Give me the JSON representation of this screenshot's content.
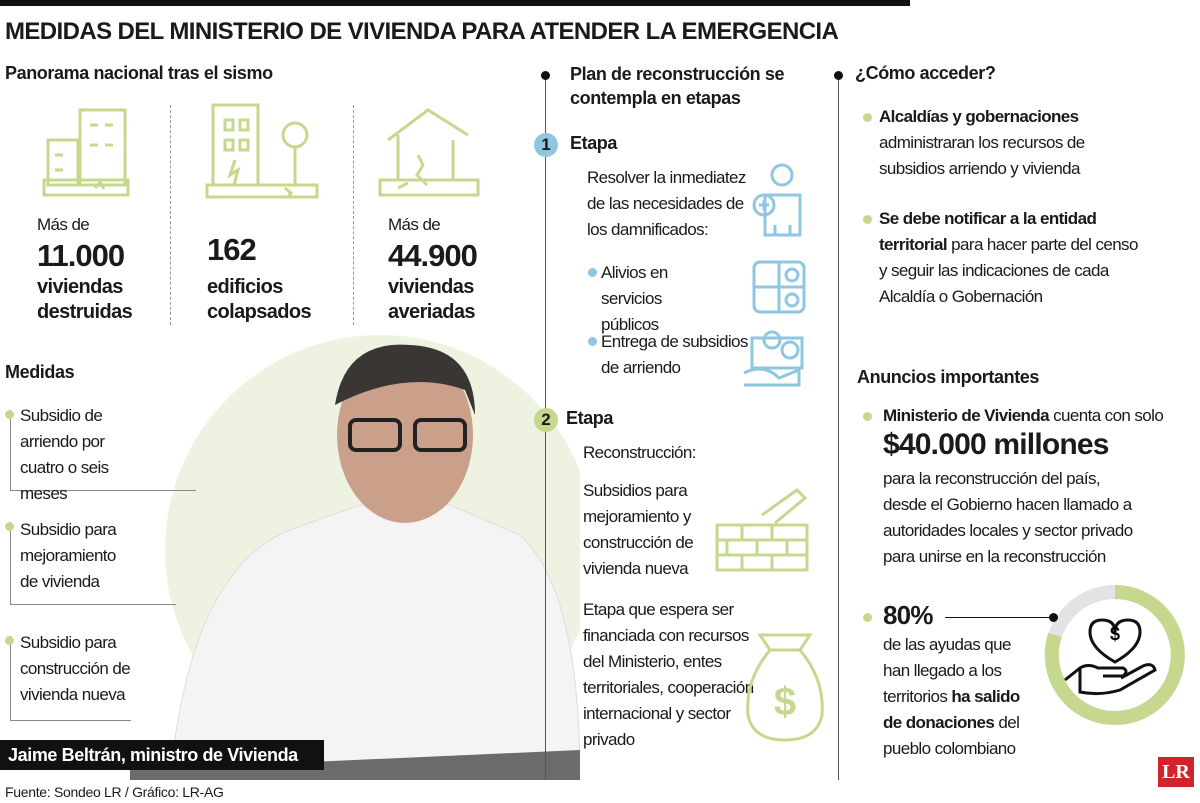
{
  "header": {
    "title": "MEDIDAS DEL MINISTERIO DE VIVIENDA PARA ATENDER LA EMERGENCIA"
  },
  "panorama": {
    "title": "Panorama nacional tras el sismo",
    "stats": [
      {
        "prefix": "Más de",
        "value": "11.000",
        "label": "viviendas destruidas"
      },
      {
        "value": "162",
        "label": "edificios colapsados"
      },
      {
        "prefix": "Más de",
        "value": "44.900",
        "label": "viviendas averiadas"
      }
    ]
  },
  "medidas": {
    "title": "Medidas",
    "items": [
      "Subsidio de arriendo por cuatro o seis meses",
      "Subsidio para mejoramiento de vivienda",
      "Subsidio para construcción de vivienda nueva"
    ]
  },
  "caption": "Jaime Beltrán, ministro de Vivienda",
  "plan": {
    "title": "Plan de reconstrucción se contempla en etapas",
    "stages": [
      {
        "number": "1",
        "label": "Etapa",
        "intro": "Resolver la inmediatez de las necesidades de los damnificados:",
        "items": [
          "Alivios en servicios públicos",
          "Entrega de subsidios de arriendo"
        ]
      },
      {
        "number": "2",
        "label": "Etapa",
        "intro": "Reconstrucción:",
        "paragraphs": [
          "Subsidios para mejoramiento y construcción de vivienda nueva",
          "Etapa que espera ser financiada con recursos del Ministerio, entes territoriales, cooperación internacional y sector privado"
        ]
      }
    ]
  },
  "access": {
    "title": "¿Cómo acceder?",
    "items": [
      {
        "bold": "Alcaldías y gobernaciones",
        "text": "administraran los recursos de subsidios arriendo y vivienda"
      },
      {
        "bold": "Se debe notificar a la entidad territorial",
        "text": "para hacer parte del censo y seguir las indicaciones de cada Alcaldía o Gobernación"
      }
    ]
  },
  "announcements": {
    "title": "Anuncios importantes",
    "items": [
      {
        "bold": "Ministerio de Vivienda",
        "text": "cuenta con solo",
        "amount": "$40.000 millones",
        "rest": "para la reconstrucción del país, desde el Gobierno hacen llamado a autoridades locales y sector privado para unirse en la reconstrucción"
      },
      {
        "figure": "80%",
        "text": "de las ayudas que han llegado a los territorios",
        "bold": "ha salido de donaciones",
        "rest": "del pueblo colombiano"
      }
    ]
  },
  "footer": {
    "source": "Fuente: Sondeo LR / Gráfico: LR-AG",
    "logo": "LR"
  }
}
